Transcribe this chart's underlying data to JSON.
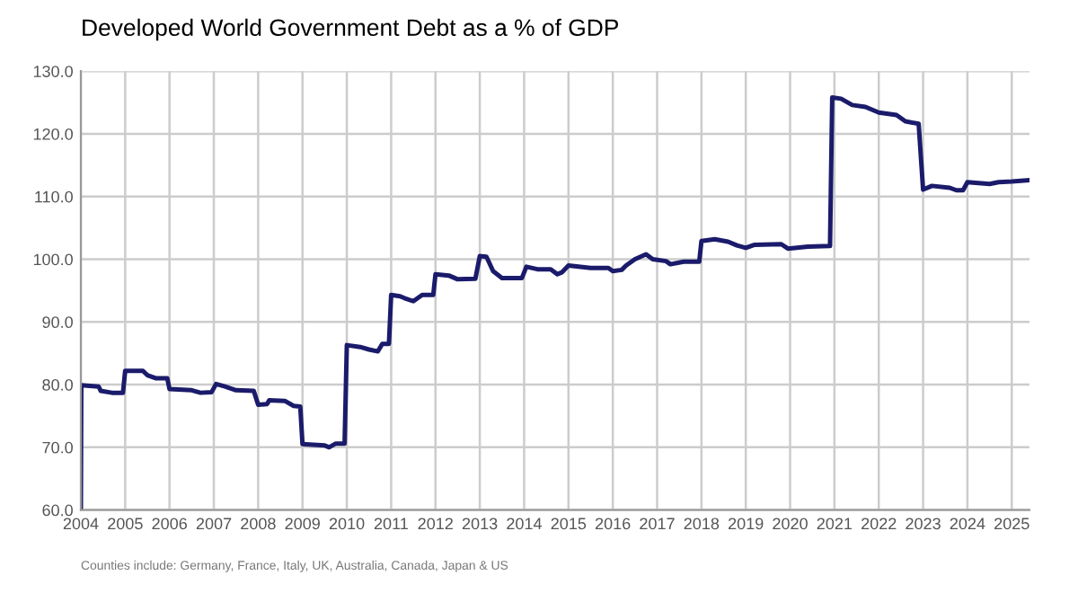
{
  "chart_data": {
    "type": "line",
    "title": "Developed World Government Debt as a % of GDP",
    "annotations": [
      "Counties include: Germany, France, Italy, UK, Australia, Canada, Japan & US"
    ],
    "series": [
      {
        "color": "#1b1b6b",
        "x": [
          2004,
          2004.01,
          2004.4,
          2004.45,
          2004.7,
          2004.95,
          2005.0,
          2005.4,
          2005.5,
          2005.7,
          2005.95,
          2006.0,
          2006.5,
          2006.7,
          2006.95,
          2007.05,
          2007.25,
          2007.5,
          2007.9,
          2008.0,
          2008.2,
          2008.25,
          2008.6,
          2008.8,
          2008.95,
          2009.0,
          2009.5,
          2009.6,
          2009.75,
          2009.95,
          2010.0,
          2010.3,
          2010.5,
          2010.7,
          2010.8,
          2010.95,
          2011.0,
          2011.2,
          2011.3,
          2011.5,
          2011.7,
          2011.95,
          2012.0,
          2012.3,
          2012.5,
          2012.9,
          2013.0,
          2013.15,
          2013.3,
          2013.5,
          2013.95,
          2014.05,
          2014.3,
          2014.6,
          2014.75,
          2014.85,
          2015.0,
          2015.5,
          2015.9,
          2016.0,
          2016.2,
          2016.3,
          2016.5,
          2016.75,
          2016.9,
          2017.2,
          2017.3,
          2017.6,
          2017.95,
          2018.0,
          2018.3,
          2018.6,
          2018.8,
          2019.0,
          2019.2,
          2019.8,
          2019.95,
          2020.4,
          2020.9,
          2020.95,
          2021.15,
          2021.4,
          2021.7,
          2022.0,
          2022.4,
          2022.6,
          2022.9,
          2023.0,
          2023.2,
          2023.6,
          2023.75,
          2023.9,
          2024.0,
          2024.5,
          2024.7,
          2025.0,
          2025.4
        ],
        "values": [
          60,
          79.9,
          79.7,
          79.0,
          78.7,
          78.7,
          82.2,
          82.2,
          81.5,
          81.0,
          81.0,
          79.3,
          79.1,
          78.7,
          78.8,
          80.1,
          79.7,
          79.1,
          79.0,
          76.8,
          76.9,
          77.5,
          77.4,
          76.6,
          76.5,
          70.5,
          70.3,
          70.0,
          70.6,
          70.6,
          86.3,
          86.0,
          85.6,
          85.3,
          86.5,
          86.5,
          94.3,
          94.1,
          93.8,
          93.3,
          94.3,
          94.3,
          97.6,
          97.4,
          96.8,
          96.9,
          100.5,
          100.4,
          98.1,
          97.0,
          97.0,
          98.8,
          98.4,
          98.4,
          97.6,
          97.9,
          99.0,
          98.6,
          98.6,
          98.1,
          98.3,
          99.0,
          100.0,
          100.8,
          100.0,
          99.7,
          99.2,
          99.6,
          99.6,
          102.9,
          103.2,
          102.8,
          102.2,
          101.8,
          102.3,
          102.4,
          101.7,
          102.0,
          102.1,
          125.8,
          125.6,
          124.6,
          124.3,
          123.4,
          123.0,
          122.0,
          121.6,
          111.1,
          111.7,
          111.4,
          111.0,
          111.0,
          112.3,
          112.0,
          112.3,
          112.4,
          112.6
        ]
      }
    ],
    "xlim": [
      2004,
      2025.4
    ],
    "xticks": [
      2004,
      2005,
      2006,
      2007,
      2008,
      2009,
      2010,
      2011,
      2012,
      2013,
      2014,
      2015,
      2016,
      2017,
      2018,
      2019,
      2020,
      2021,
      2022,
      2023,
      2024,
      2025
    ],
    "ylim": [
      60,
      130
    ],
    "yticks": [
      {
        "value": 60,
        "label": "60.0"
      },
      {
        "value": 70,
        "label": "70.0"
      },
      {
        "value": 80,
        "label": "80.0"
      },
      {
        "value": 90,
        "label": "90.0"
      },
      {
        "value": 100,
        "label": "100.0"
      },
      {
        "value": 110,
        "label": "110.0"
      },
      {
        "value": 120,
        "label": "120.0"
      },
      {
        "value": 130,
        "label": "130.0"
      }
    ],
    "grid": true
  }
}
